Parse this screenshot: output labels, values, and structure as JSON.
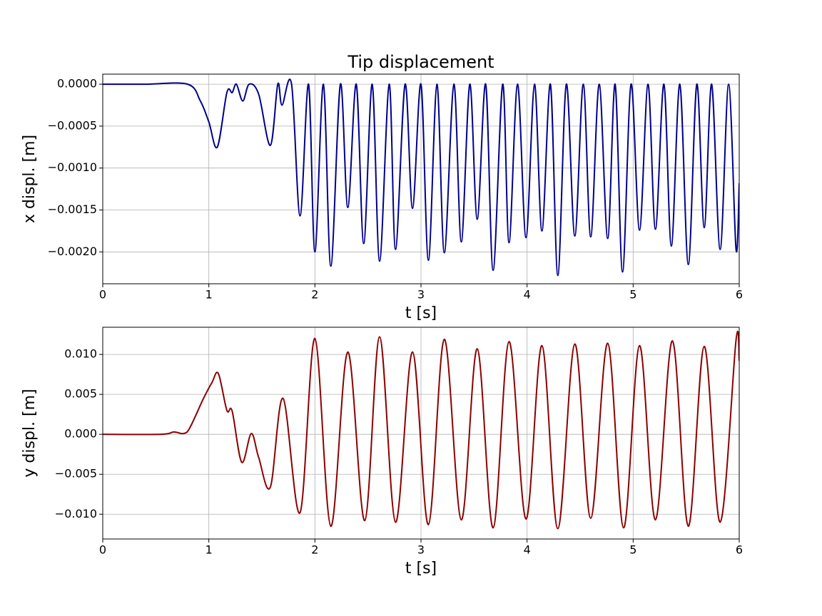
{
  "chart_data": [
    {
      "type": "line",
      "title": "Tip displacement",
      "xlabel": "t [s]",
      "ylabel": "x displ. [m]",
      "color": "#00008b",
      "grid": true,
      "xlim": [
        0,
        6
      ],
      "xticks": [
        0,
        1,
        2,
        3,
        4,
        5,
        6
      ],
      "ylim": [
        -0.00238,
        0.00012
      ],
      "yticks": [
        {
          "value": 0,
          "label": "0.0000"
        },
        {
          "value": -0.0005,
          "label": "−0.0005"
        },
        {
          "value": -0.001,
          "label": "−0.0010"
        },
        {
          "value": -0.0015,
          "label": "−0.0015"
        },
        {
          "value": -0.002,
          "label": "−0.0020"
        }
      ],
      "x": [
        0,
        0.4,
        0.8,
        0.92,
        1.0,
        1.08,
        1.17,
        1.22,
        1.26,
        1.32,
        1.38,
        1.47,
        1.58,
        1.65,
        1.69,
        1.78,
        1.86,
        1.94,
        2.0,
        2.08,
        2.15,
        2.24,
        2.31,
        2.39,
        2.46,
        2.54,
        2.61,
        2.7,
        2.76,
        2.85,
        2.92,
        3.0,
        3.07,
        3.15,
        3.22,
        3.31,
        3.38,
        3.46,
        3.53,
        3.61,
        3.68,
        3.77,
        3.83,
        3.91,
        3.99,
        4.07,
        4.14,
        4.22,
        4.29,
        4.37,
        4.45,
        4.53,
        4.6,
        4.68,
        4.76,
        4.83,
        4.9,
        4.98,
        5.06,
        5.14,
        5.21,
        5.29,
        5.36,
        5.44,
        5.52,
        5.6,
        5.67,
        5.74,
        5.82,
        5.9,
        5.97,
        6.0
      ],
      "values": [
        0,
        0,
        0,
        -0.0002,
        -0.00045,
        -0.00075,
        -0.0001,
        -0.0001,
        0,
        -0.0002,
        0,
        -0.00012,
        -0.00073,
        0,
        -0.00025,
        0,
        -0.00157,
        0,
        -0.002,
        0,
        -0.00217,
        0,
        -0.00147,
        0,
        -0.0019,
        0,
        -0.00211,
        0,
        -0.00197,
        0,
        -0.00148,
        0,
        -0.0021,
        0,
        -0.00201,
        0,
        -0.00188,
        0,
        -0.00161,
        0,
        -0.00222,
        0,
        -0.00189,
        0,
        -0.00183,
        0,
        -0.00175,
        0,
        -0.00228,
        0,
        -0.00181,
        0,
        -0.00182,
        0,
        -0.00184,
        0,
        -0.00224,
        0,
        -0.00174,
        0,
        -0.00173,
        0,
        -0.00193,
        0,
        -0.00215,
        0,
        -0.00171,
        0,
        -0.00197,
        0,
        -0.00197,
        -0.00118
      ]
    },
    {
      "type": "line",
      "xlabel": "t [s]",
      "ylabel": "y displ. [m]",
      "color": "#8b0000",
      "grid": true,
      "xlim": [
        0,
        6
      ],
      "xticks": [
        0,
        1,
        2,
        3,
        4,
        5,
        6
      ],
      "ylim": [
        -0.0131,
        0.0134
      ],
      "yticks": [
        {
          "value": 0.01,
          "label": "0.010"
        },
        {
          "value": 0.005,
          "label": "0.005"
        },
        {
          "value": 0,
          "label": "0.000"
        },
        {
          "value": -0.005,
          "label": "−0.005"
        },
        {
          "value": -0.01,
          "label": "−0.010"
        }
      ],
      "x": [
        0,
        0.55,
        0.67,
        0.76,
        0.82,
        0.95,
        1.03,
        1.09,
        1.17,
        1.22,
        1.31,
        1.4,
        1.47,
        1.58,
        1.7,
        1.86,
        2.0,
        2.15,
        2.31,
        2.47,
        2.61,
        2.76,
        2.92,
        3.07,
        3.22,
        3.38,
        3.53,
        3.68,
        3.83,
        3.99,
        4.14,
        4.29,
        4.45,
        4.6,
        4.76,
        4.91,
        5.06,
        5.21,
        5.37,
        5.52,
        5.67,
        5.82,
        5.97,
        6.0
      ],
      "values": [
        0,
        0,
        0.0003,
        0.0001,
        0.0008,
        0.0045,
        0.0065,
        0.0076,
        0.003,
        0.0029,
        -0.0035,
        0.0001,
        -0.0029,
        -0.0066,
        0.0045,
        -0.0098,
        0.012,
        -0.0115,
        0.0103,
        -0.0108,
        0.0122,
        -0.011,
        0.0103,
        -0.0113,
        0.0119,
        -0.0107,
        0.0107,
        -0.0117,
        0.0116,
        -0.0106,
        0.0111,
        -0.0118,
        0.0113,
        -0.0105,
        0.0114,
        -0.0117,
        0.0111,
        -0.0107,
        0.0117,
        -0.0115,
        0.011,
        -0.011,
        0.0118,
        0.0092
      ]
    }
  ]
}
